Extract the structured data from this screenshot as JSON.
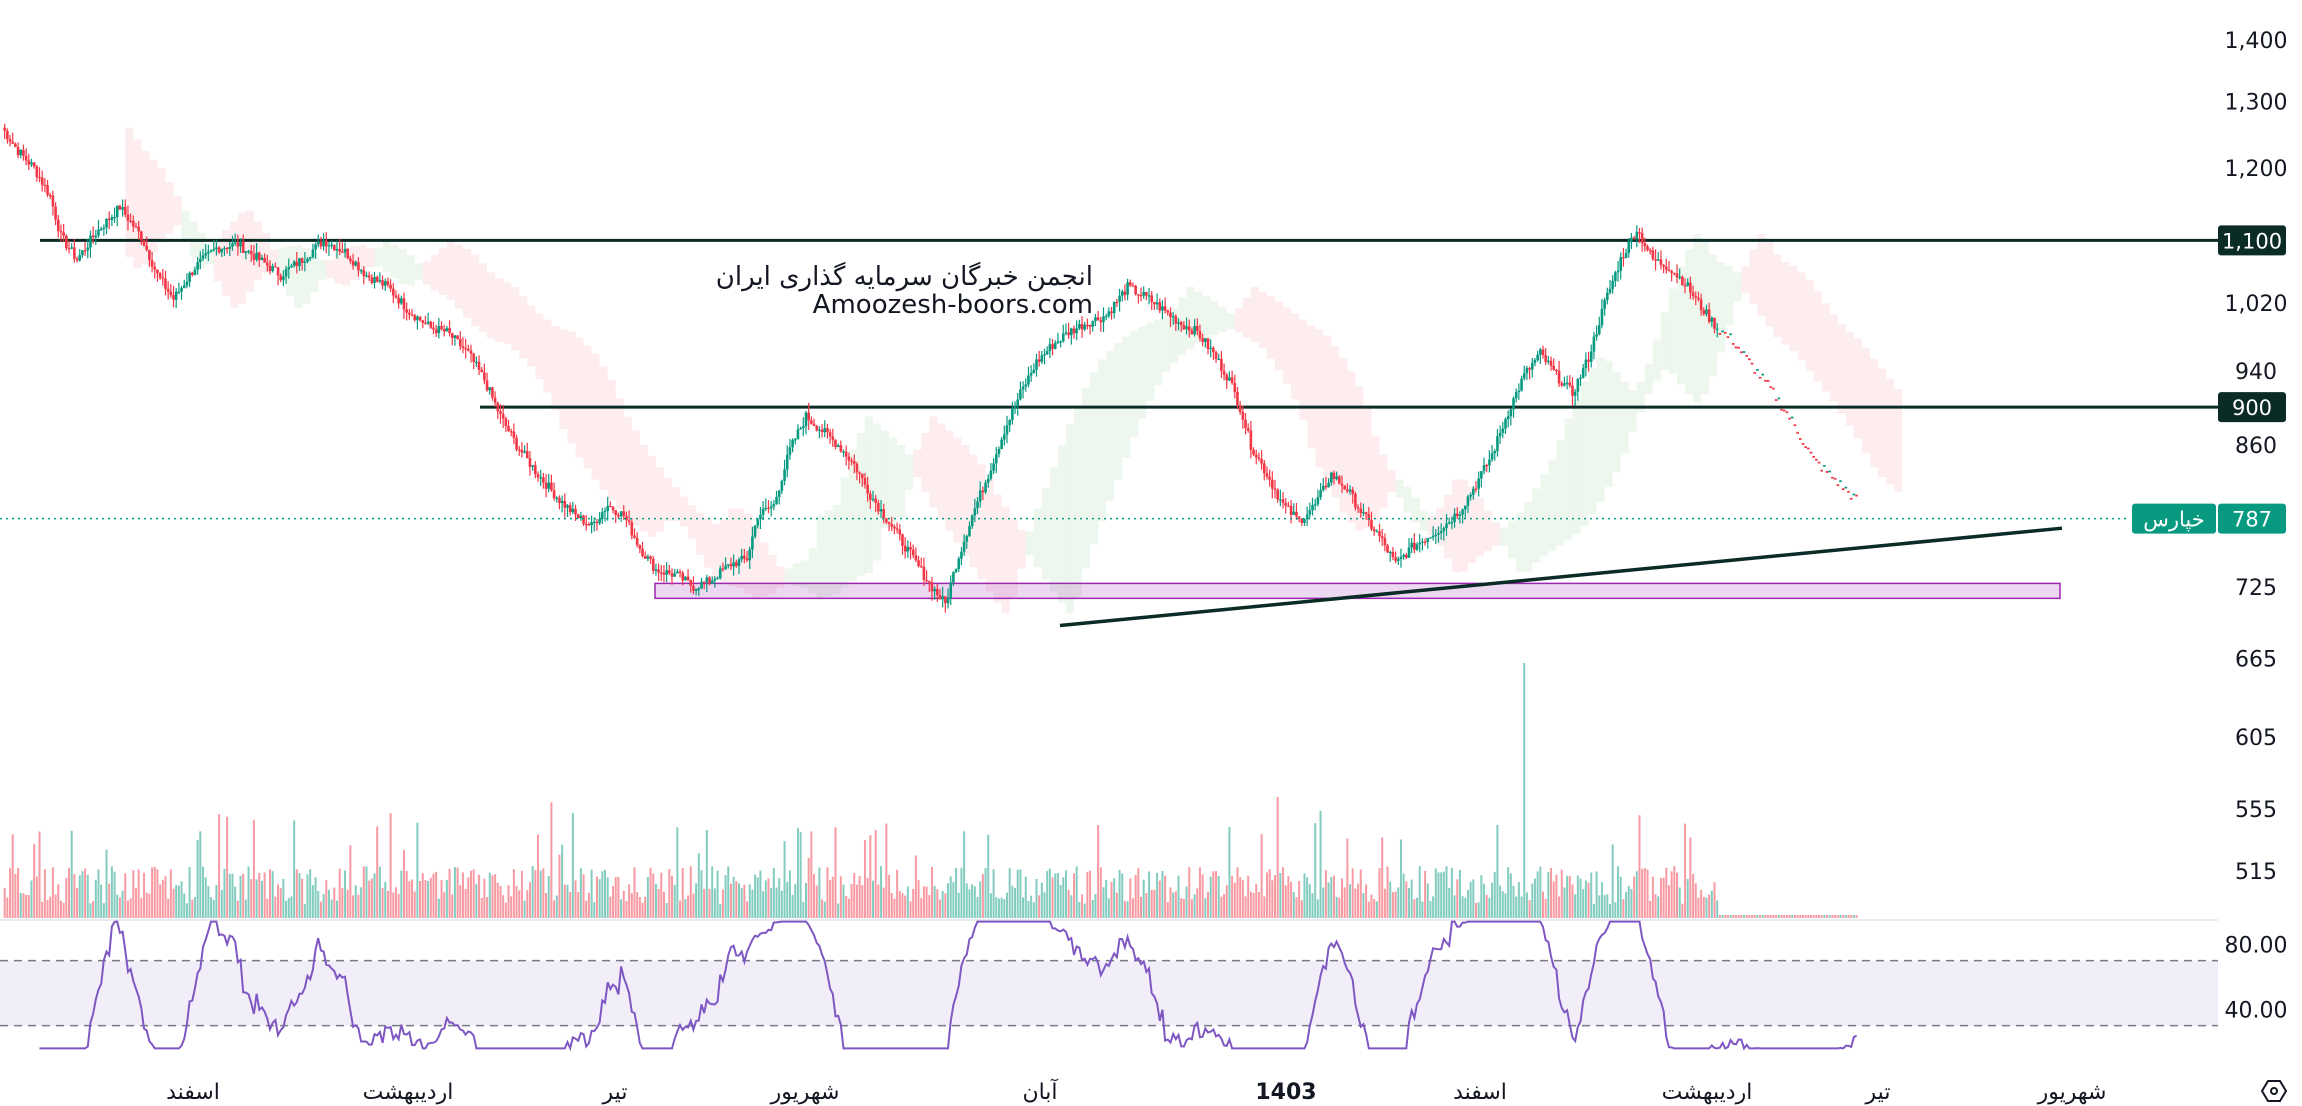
{
  "chart_data": {
    "type": "candlestick",
    "watermark": {
      "line1": "انجمن خبرگان سرمایه گذاری ایران",
      "line2": "Amoozesh-boors.com"
    },
    "price_axis": {
      "ticks": [
        "1,400",
        "1,300",
        "1,200",
        "1,020",
        "940",
        "860",
        "725",
        "665",
        "605",
        "555",
        "515"
      ],
      "scale": "log"
    },
    "x_axis": {
      "labels": [
        {
          "text": "اسفند",
          "bold": false
        },
        {
          "text": "اردیبهشت",
          "bold": false
        },
        {
          "text": "تیر",
          "bold": false
        },
        {
          "text": "شهریور",
          "bold": false
        },
        {
          "text": "آبان",
          "bold": false
        },
        {
          "text": "1403",
          "bold": true
        },
        {
          "text": "اسفند",
          "bold": false
        },
        {
          "text": "اردیبهشت",
          "bold": false
        },
        {
          "text": "تیر",
          "bold": false
        },
        {
          "text": "شهریور",
          "bold": false
        }
      ]
    },
    "horizontal_levels": [
      {
        "value": 1100,
        "label": "1,100",
        "color": "#0b2b26"
      },
      {
        "value": 900,
        "label": "900",
        "color": "#0b2b26"
      }
    ],
    "last_price": {
      "value": 787,
      "label": "787",
      "symbol": "خپارس",
      "color": "#089981"
    },
    "support_zone": {
      "low": 715,
      "high": 728,
      "color": "#9c27b0"
    },
    "trendline": {
      "from": 692,
      "to": 778,
      "color": "#0b2b26"
    },
    "rsi": {
      "ticks": [
        "80.00",
        "40.00"
      ],
      "upper": 70,
      "lower": 30,
      "fill_color": "#7e57c2",
      "line_color": "#7e57c2",
      "ylim": [
        15,
        95
      ]
    },
    "colors": {
      "up": "#089981",
      "down": "#f23645",
      "cloud_bull": "#4caf50",
      "cloud_bear": "#f7525f"
    },
    "close_path": [
      [
        0,
        1260
      ],
      [
        6,
        1225
      ],
      [
        12,
        1200
      ],
      [
        18,
        1160
      ],
      [
        22,
        1105
      ],
      [
        28,
        1075
      ],
      [
        35,
        1110
      ],
      [
        44,
        1145
      ],
      [
        52,
        1105
      ],
      [
        58,
        1055
      ],
      [
        64,
        1025
      ],
      [
        72,
        1065
      ],
      [
        80,
        1090
      ],
      [
        88,
        1095
      ],
      [
        96,
        1075
      ],
      [
        104,
        1055
      ],
      [
        112,
        1075
      ],
      [
        120,
        1100
      ],
      [
        128,
        1085
      ],
      [
        136,
        1055
      ],
      [
        144,
        1040
      ],
      [
        152,
        1010
      ],
      [
        160,
        990
      ],
      [
        166,
        985
      ],
      [
        174,
        960
      ],
      [
        180,
        930
      ],
      [
        186,
        890
      ],
      [
        192,
        860
      ],
      [
        200,
        830
      ],
      [
        208,
        805
      ],
      [
        214,
        790
      ],
      [
        220,
        780
      ],
      [
        226,
        800
      ],
      [
        232,
        790
      ],
      [
        238,
        760
      ],
      [
        244,
        740
      ],
      [
        252,
        735
      ],
      [
        258,
        725
      ],
      [
        264,
        730
      ],
      [
        272,
        745
      ],
      [
        278,
        750
      ],
      [
        282,
        790
      ],
      [
        288,
        800
      ],
      [
        294,
        855
      ],
      [
        300,
        890
      ],
      [
        306,
        875
      ],
      [
        312,
        860
      ],
      [
        318,
        840
      ],
      [
        324,
        810
      ],
      [
        332,
        780
      ],
      [
        340,
        750
      ],
      [
        346,
        728
      ],
      [
        352,
        710
      ],
      [
        356,
        745
      ],
      [
        362,
        790
      ],
      [
        368,
        830
      ],
      [
        374,
        875
      ],
      [
        380,
        915
      ],
      [
        386,
        950
      ],
      [
        392,
        970
      ],
      [
        398,
        985
      ],
      [
        404,
        995
      ],
      [
        412,
        1005
      ],
      [
        420,
        1040
      ],
      [
        428,
        1025
      ],
      [
        434,
        1010
      ],
      [
        440,
        995
      ],
      [
        446,
        985
      ],
      [
        452,
        960
      ],
      [
        458,
        930
      ],
      [
        462,
        900
      ],
      [
        466,
        860
      ],
      [
        472,
        830
      ],
      [
        478,
        800
      ],
      [
        484,
        785
      ],
      [
        490,
        800
      ],
      [
        496,
        830
      ],
      [
        502,
        815
      ],
      [
        508,
        790
      ],
      [
        514,
        770
      ],
      [
        520,
        745
      ],
      [
        526,
        760
      ],
      [
        532,
        770
      ],
      [
        538,
        780
      ],
      [
        544,
        795
      ],
      [
        550,
        820
      ],
      [
        556,
        850
      ],
      [
        562,
        895
      ],
      [
        568,
        935
      ],
      [
        574,
        960
      ],
      [
        580,
        935
      ],
      [
        586,
        915
      ],
      [
        592,
        955
      ],
      [
        598,
        1020
      ],
      [
        604,
        1075
      ],
      [
        610,
        1115
      ],
      [
        616,
        1075
      ],
      [
        622,
        1065
      ],
      [
        628,
        1045
      ],
      [
        634,
        1015
      ],
      [
        640,
        990
      ],
      [
        646,
        975
      ],
      [
        652,
        950
      ],
      [
        660,
        920
      ],
      [
        668,
        885
      ],
      [
        676,
        845
      ],
      [
        684,
        825
      ],
      [
        692,
        805
      ]
    ]
  }
}
